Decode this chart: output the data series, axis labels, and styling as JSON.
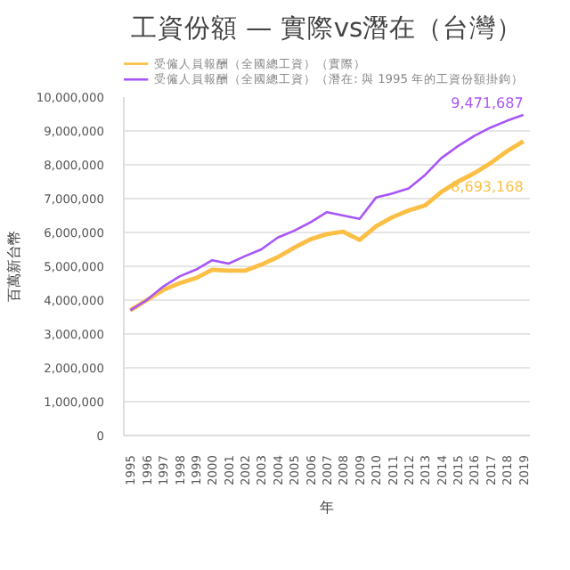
{
  "chart_data": {
    "type": "line",
    "title": "工資份額 — 實際vs潛在（台灣）",
    "xlabel": "年",
    "ylabel": "百萬新台幣",
    "categories": [
      "1995",
      "1996",
      "1997",
      "1998",
      "1999",
      "2000",
      "2001",
      "2002",
      "2003",
      "2004",
      "2005",
      "2006",
      "2007",
      "2008",
      "2009",
      "2010",
      "2011",
      "2012",
      "2013",
      "2014",
      "2015",
      "2016",
      "2017",
      "2018",
      "2019"
    ],
    "series": [
      {
        "name": "受僱人員報酬（全國總工資）（實際）",
        "color": "#fbbf45",
        "values": [
          3700000,
          4000000,
          4300000,
          4500000,
          4650000,
          4900000,
          4870000,
          4870000,
          5050000,
          5270000,
          5550000,
          5800000,
          5950000,
          6020000,
          5780000,
          6180000,
          6450000,
          6650000,
          6800000,
          7200000,
          7500000,
          7750000,
          8050000,
          8400000,
          8693168
        ]
      },
      {
        "name": "受僱人員報酬（全國總工資）（潛在: 與 1995 年的工資份額掛鉤）",
        "color": "#a855f7",
        "values": [
          3700000,
          4000000,
          4400000,
          4700000,
          4900000,
          5180000,
          5080000,
          5300000,
          5500000,
          5850000,
          6050000,
          6300000,
          6600000,
          6500000,
          6400000,
          7030000,
          7150000,
          7300000,
          7700000,
          8200000,
          8550000,
          8850000,
          9100000,
          9300000,
          9471687
        ]
      }
    ],
    "annotations": [
      {
        "text": "9,471,687",
        "x": "2019",
        "y": 9471687
      },
      {
        "text": "8,693,168",
        "x": "2019",
        "y": 8693168
      }
    ],
    "ylim": [
      0,
      10000000
    ],
    "yticks": [
      {
        "value": 0,
        "label": "0"
      },
      {
        "value": 1000000,
        "label": "1,000,000"
      },
      {
        "value": 2000000,
        "label": "2,000,000"
      },
      {
        "value": 3000000,
        "label": "3,000,000"
      },
      {
        "value": 4000000,
        "label": "4,000,000"
      },
      {
        "value": 5000000,
        "label": "5,000,000"
      },
      {
        "value": 6000000,
        "label": "6,000,000"
      },
      {
        "value": 7000000,
        "label": "7,000,000"
      },
      {
        "value": 8000000,
        "label": "8,000,000"
      },
      {
        "value": 9000000,
        "label": "9,000,000"
      },
      {
        "value": 10000000,
        "label": "10,000,000"
      }
    ],
    "grid": "y",
    "legend": "top",
    "marker": "none",
    "line_style": "solid"
  }
}
